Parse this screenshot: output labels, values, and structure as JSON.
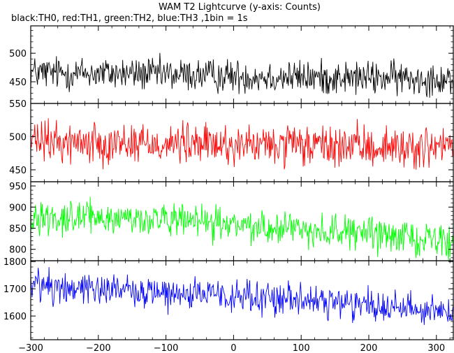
{
  "title": "WAM T2 Lightcurve (y-axis: Counts)",
  "subtitle": "black:TH0, red:TH1, green:TH2, blue:TH3 ,1bin = 1s",
  "chart_data": [
    {
      "type": "line",
      "name": "TH0",
      "color": "#000000",
      "x_range": [
        -300,
        325
      ],
      "x_ticks": [
        -300,
        -200,
        -100,
        0,
        100,
        200,
        300
      ],
      "x_tick_labels": [],
      "ylim": [
        412,
        548
      ],
      "y_ticks": [
        450,
        500
      ],
      "y_tick_labels": [
        "450",
        "500"
      ],
      "trend": [
        [
          -300,
          466
        ],
        [
          -150,
          464
        ],
        [
          0,
          460
        ],
        [
          150,
          457
        ],
        [
          325,
          456
        ]
      ],
      "noise_amplitude": 44,
      "grid": false
    },
    {
      "type": "line",
      "name": "TH1",
      "color": "#ff0000",
      "x_range": [
        -300,
        325
      ],
      "x_ticks": [
        -300,
        -200,
        -100,
        0,
        100,
        200,
        300
      ],
      "x_tick_labels": [],
      "ylim": [
        432,
        550
      ],
      "y_ticks": [
        450,
        500,
        550
      ],
      "y_tick_labels": [
        "450",
        "500",
        "550"
      ],
      "trend": [
        [
          -300,
          492
        ],
        [
          -150,
          491
        ],
        [
          0,
          487
        ],
        [
          150,
          485
        ],
        [
          325,
          483
        ]
      ],
      "noise_amplitude": 46,
      "grid": false
    },
    {
      "type": "line",
      "name": "TH2",
      "color": "#00ff00",
      "x_range": [
        -300,
        325
      ],
      "x_ticks": [
        -300,
        -200,
        -100,
        0,
        100,
        200,
        300
      ],
      "x_tick_labels": [],
      "ylim": [
        773,
        960
      ],
      "y_ticks": [
        800,
        850,
        900,
        950
      ],
      "y_tick_labels": [
        "800",
        "850",
        "900",
        "950"
      ],
      "trend": [
        [
          -300,
          878
        ],
        [
          -150,
          873
        ],
        [
          0,
          858
        ],
        [
          150,
          843
        ],
        [
          325,
          820
        ]
      ],
      "noise_amplitude": 58,
      "grid": false
    },
    {
      "type": "line",
      "name": "TH3",
      "color": "#0000ff",
      "x_range": [
        -300,
        325
      ],
      "x_ticks": [
        -300,
        -200,
        -100,
        0,
        100,
        200,
        300
      ],
      "x_tick_labels": [
        "−300",
        "−200",
        "−100",
        "0",
        "100",
        "200",
        "300"
      ],
      "ylim": [
        1513,
        1803
      ],
      "y_ticks": [
        1600,
        1700,
        1800
      ],
      "y_tick_labels": [
        "1600",
        "1700",
        "1800"
      ],
      "trend": [
        [
          -300,
          1715
        ],
        [
          -150,
          1695
        ],
        [
          0,
          1670
        ],
        [
          150,
          1650
        ],
        [
          325,
          1620
        ]
      ],
      "noise_amplitude": 92,
      "grid": false
    }
  ]
}
